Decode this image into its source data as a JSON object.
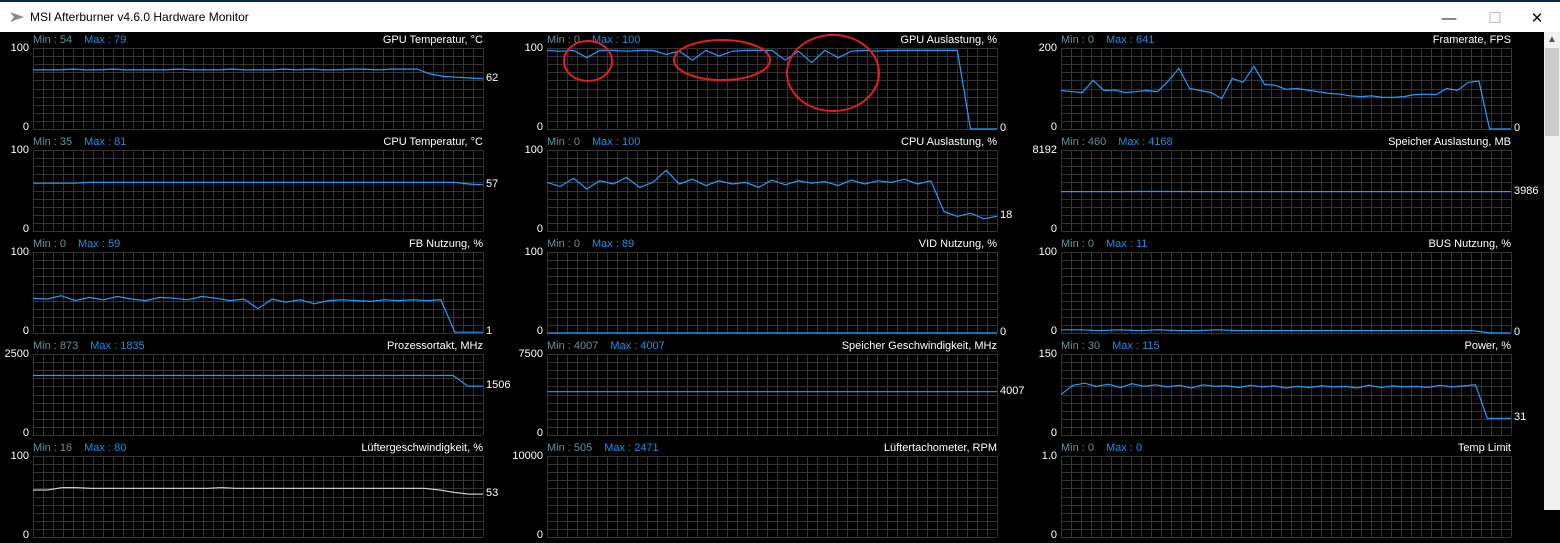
{
  "window": {
    "title": "MSI Afterburner v4.6.0 Hardware Monitor",
    "minimize": "—",
    "maximize": "☐",
    "close": "✕"
  },
  "colors": {
    "line": "#1ea0ff",
    "grid": "#333333",
    "fan_line": "#c8c8c8",
    "annotation": "#e0201c"
  },
  "panels": [
    {
      "title": "GPU Temperatur, °C",
      "min": "Min : 54",
      "max": "Max : 79",
      "ymax": "100",
      "ymin": "0",
      "current": "62",
      "range": [
        0,
        100
      ],
      "values": [
        73,
        73,
        73,
        74,
        73,
        73,
        74,
        73,
        73,
        73,
        73,
        74,
        73,
        73,
        73,
        74,
        73,
        73,
        73,
        74,
        73,
        74,
        73,
        73,
        74,
        74,
        73,
        74,
        74,
        74,
        68,
        65,
        64,
        63,
        62
      ]
    },
    {
      "title": "GPU Auslastung, %",
      "min": "Min : 0",
      "max": "Max : 100",
      "ymax": "100",
      "ymin": "0",
      "current": "0",
      "range": [
        0,
        100
      ],
      "values": [
        97,
        96,
        97,
        88,
        97,
        97,
        96,
        97,
        97,
        92,
        96,
        85,
        97,
        90,
        96,
        97,
        97,
        97,
        85,
        96,
        82,
        97,
        88,
        96,
        97,
        96,
        97,
        97,
        97,
        97,
        97,
        97,
        0,
        0,
        0
      ]
    },
    {
      "title": "Framerate, FPS",
      "min": "Min : 0",
      "max": "Max : 641",
      "ymax": "200",
      "ymin": "0",
      "current": "0",
      "range": [
        0,
        200
      ],
      "values": [
        95,
        92,
        90,
        120,
        95,
        96,
        90,
        92,
        95,
        92,
        118,
        150,
        100,
        95,
        90,
        75,
        125,
        115,
        155,
        110,
        108,
        98,
        100,
        96,
        92,
        88,
        86,
        82,
        80,
        82,
        78,
        78,
        80,
        85,
        86,
        85,
        100,
        95,
        115,
        118,
        0,
        0,
        0
      ]
    },
    {
      "title": "CPU Temperatur, °C",
      "min": "Min : 35",
      "max": "Max : 81",
      "ymax": "100",
      "ymin": "0",
      "current": "57",
      "range": [
        0,
        100
      ],
      "values": [
        59,
        59,
        59,
        59,
        60,
        60,
        60,
        60,
        60,
        60,
        60,
        60,
        60,
        60,
        60,
        60,
        60,
        60,
        60,
        60,
        60,
        60,
        60,
        60,
        60,
        60,
        60,
        60,
        60,
        60,
        60,
        58,
        57
      ]
    },
    {
      "title": "CPU Auslastung, %",
      "min": "Min : 0",
      "max": "Max : 100",
      "ymax": "100",
      "ymin": "0",
      "current": "18",
      "range": [
        0,
        100
      ],
      "values": [
        60,
        55,
        65,
        52,
        62,
        58,
        66,
        54,
        60,
        75,
        58,
        64,
        56,
        62,
        58,
        60,
        54,
        63,
        57,
        62,
        59,
        61,
        56,
        63,
        58,
        62,
        60,
        64,
        58,
        62,
        24,
        18,
        22,
        15,
        18
      ]
    },
    {
      "title": "Speicher Auslastung, MB",
      "min": "Min : 460",
      "max": "Max : 4168",
      "ymax": "8192",
      "ymin": "0",
      "current": "3986",
      "range": [
        0,
        8192
      ],
      "values": [
        3986,
        3986,
        3990,
        3986,
        3986,
        3986,
        3986,
        3986,
        3986,
        3986
      ]
    },
    {
      "title": "FB Nutzung, %",
      "min": "Min : 0",
      "max": "Max : 59",
      "ymax": "100",
      "ymin": "0",
      "current": "1",
      "range": [
        0,
        100
      ],
      "values": [
        43,
        42,
        46,
        40,
        44,
        41,
        45,
        42,
        40,
        44,
        43,
        41,
        45,
        43,
        40,
        42,
        30,
        42,
        38,
        41,
        36,
        40,
        41,
        40,
        39,
        41,
        40,
        41,
        40,
        41,
        1,
        1,
        1
      ]
    },
    {
      "title": "VID Nutzung, %",
      "min": "Min : 0",
      "max": "Max : 89",
      "ymax": "100",
      "ymin": "0",
      "current": "0",
      "range": [
        0,
        100
      ],
      "values": [
        0,
        0,
        0,
        0,
        0,
        0,
        0,
        0,
        0,
        0
      ]
    },
    {
      "title": "BUS Nutzung, %",
      "min": "Min : 0",
      "max": "Max : 11",
      "ymax": "100",
      "ymin": "0",
      "current": "0",
      "range": [
        0,
        100
      ],
      "values": [
        4,
        4,
        3,
        4,
        3,
        4,
        3,
        3,
        4,
        3,
        3,
        3,
        3,
        3,
        3,
        3,
        3,
        3,
        3,
        3,
        3,
        3,
        0,
        0
      ]
    },
    {
      "title": "Prozessortakt, MHz",
      "min": "Min : 873",
      "max": "Max : 1835",
      "ymax": "2500",
      "ymin": "0",
      "current": "1506",
      "range": [
        0,
        2500
      ],
      "values": [
        1835,
        1835,
        1835,
        1835,
        1835,
        1835,
        1835,
        1835,
        1835,
        1835,
        1835,
        1835,
        1835,
        1835,
        1835,
        1835,
        1835,
        1835,
        1835,
        1835,
        1835,
        1835,
        1835,
        1835,
        1835,
        1835,
        1835,
        1835,
        1835,
        1506,
        1506
      ]
    },
    {
      "title": "Speicher Geschwindigkeit, MHz",
      "min": "Min : 4007",
      "max": "Max : 4007",
      "ymax": "7500",
      "ymin": "0",
      "current": "4007",
      "range": [
        0,
        7500
      ],
      "values": [
        4007,
        4007,
        4007,
        4007,
        4007,
        4007,
        4007,
        4007,
        4007,
        4007
      ]
    },
    {
      "title": "Power, %",
      "min": "Min : 30",
      "max": "Max : 115",
      "ymax": "150",
      "ymin": "0",
      "current": "31",
      "range": [
        0,
        150
      ],
      "values": [
        75,
        92,
        96,
        90,
        94,
        88,
        95,
        90,
        93,
        89,
        92,
        87,
        93,
        90,
        91,
        88,
        92,
        89,
        91,
        87,
        90,
        88,
        91,
        89,
        90,
        87,
        92,
        88,
        91,
        89,
        90,
        88,
        92,
        89,
        91,
        93,
        31,
        31,
        31
      ]
    },
    {
      "title": "Lüftergeschwindigkeit, %",
      "min": "Min : 16",
      "max": "Max : 80",
      "ymax": "100",
      "ymin": "0",
      "current": "53",
      "range": [
        0,
        100
      ],
      "values": [
        58,
        58,
        61,
        61,
        60,
        60,
        60,
        60,
        60,
        60,
        60,
        60,
        60,
        61,
        60,
        60,
        60,
        60,
        60,
        60,
        60,
        60,
        60,
        60,
        60,
        60,
        60,
        60,
        58,
        55,
        53,
        53
      ]
    },
    {
      "title": "Lüftertachometer, RPM",
      "min": "Min : 505",
      "max": "Max : 2471",
      "ymax": "10000",
      "ymin": "0",
      "current": "",
      "range": [
        0,
        10000
      ],
      "values": []
    },
    {
      "title": "Temp Limit",
      "min": "Min : 0",
      "max": "Max : 0",
      "ymax": "1.0",
      "ymin": "0",
      "current": "",
      "range": [
        0,
        1
      ],
      "values": []
    }
  ]
}
